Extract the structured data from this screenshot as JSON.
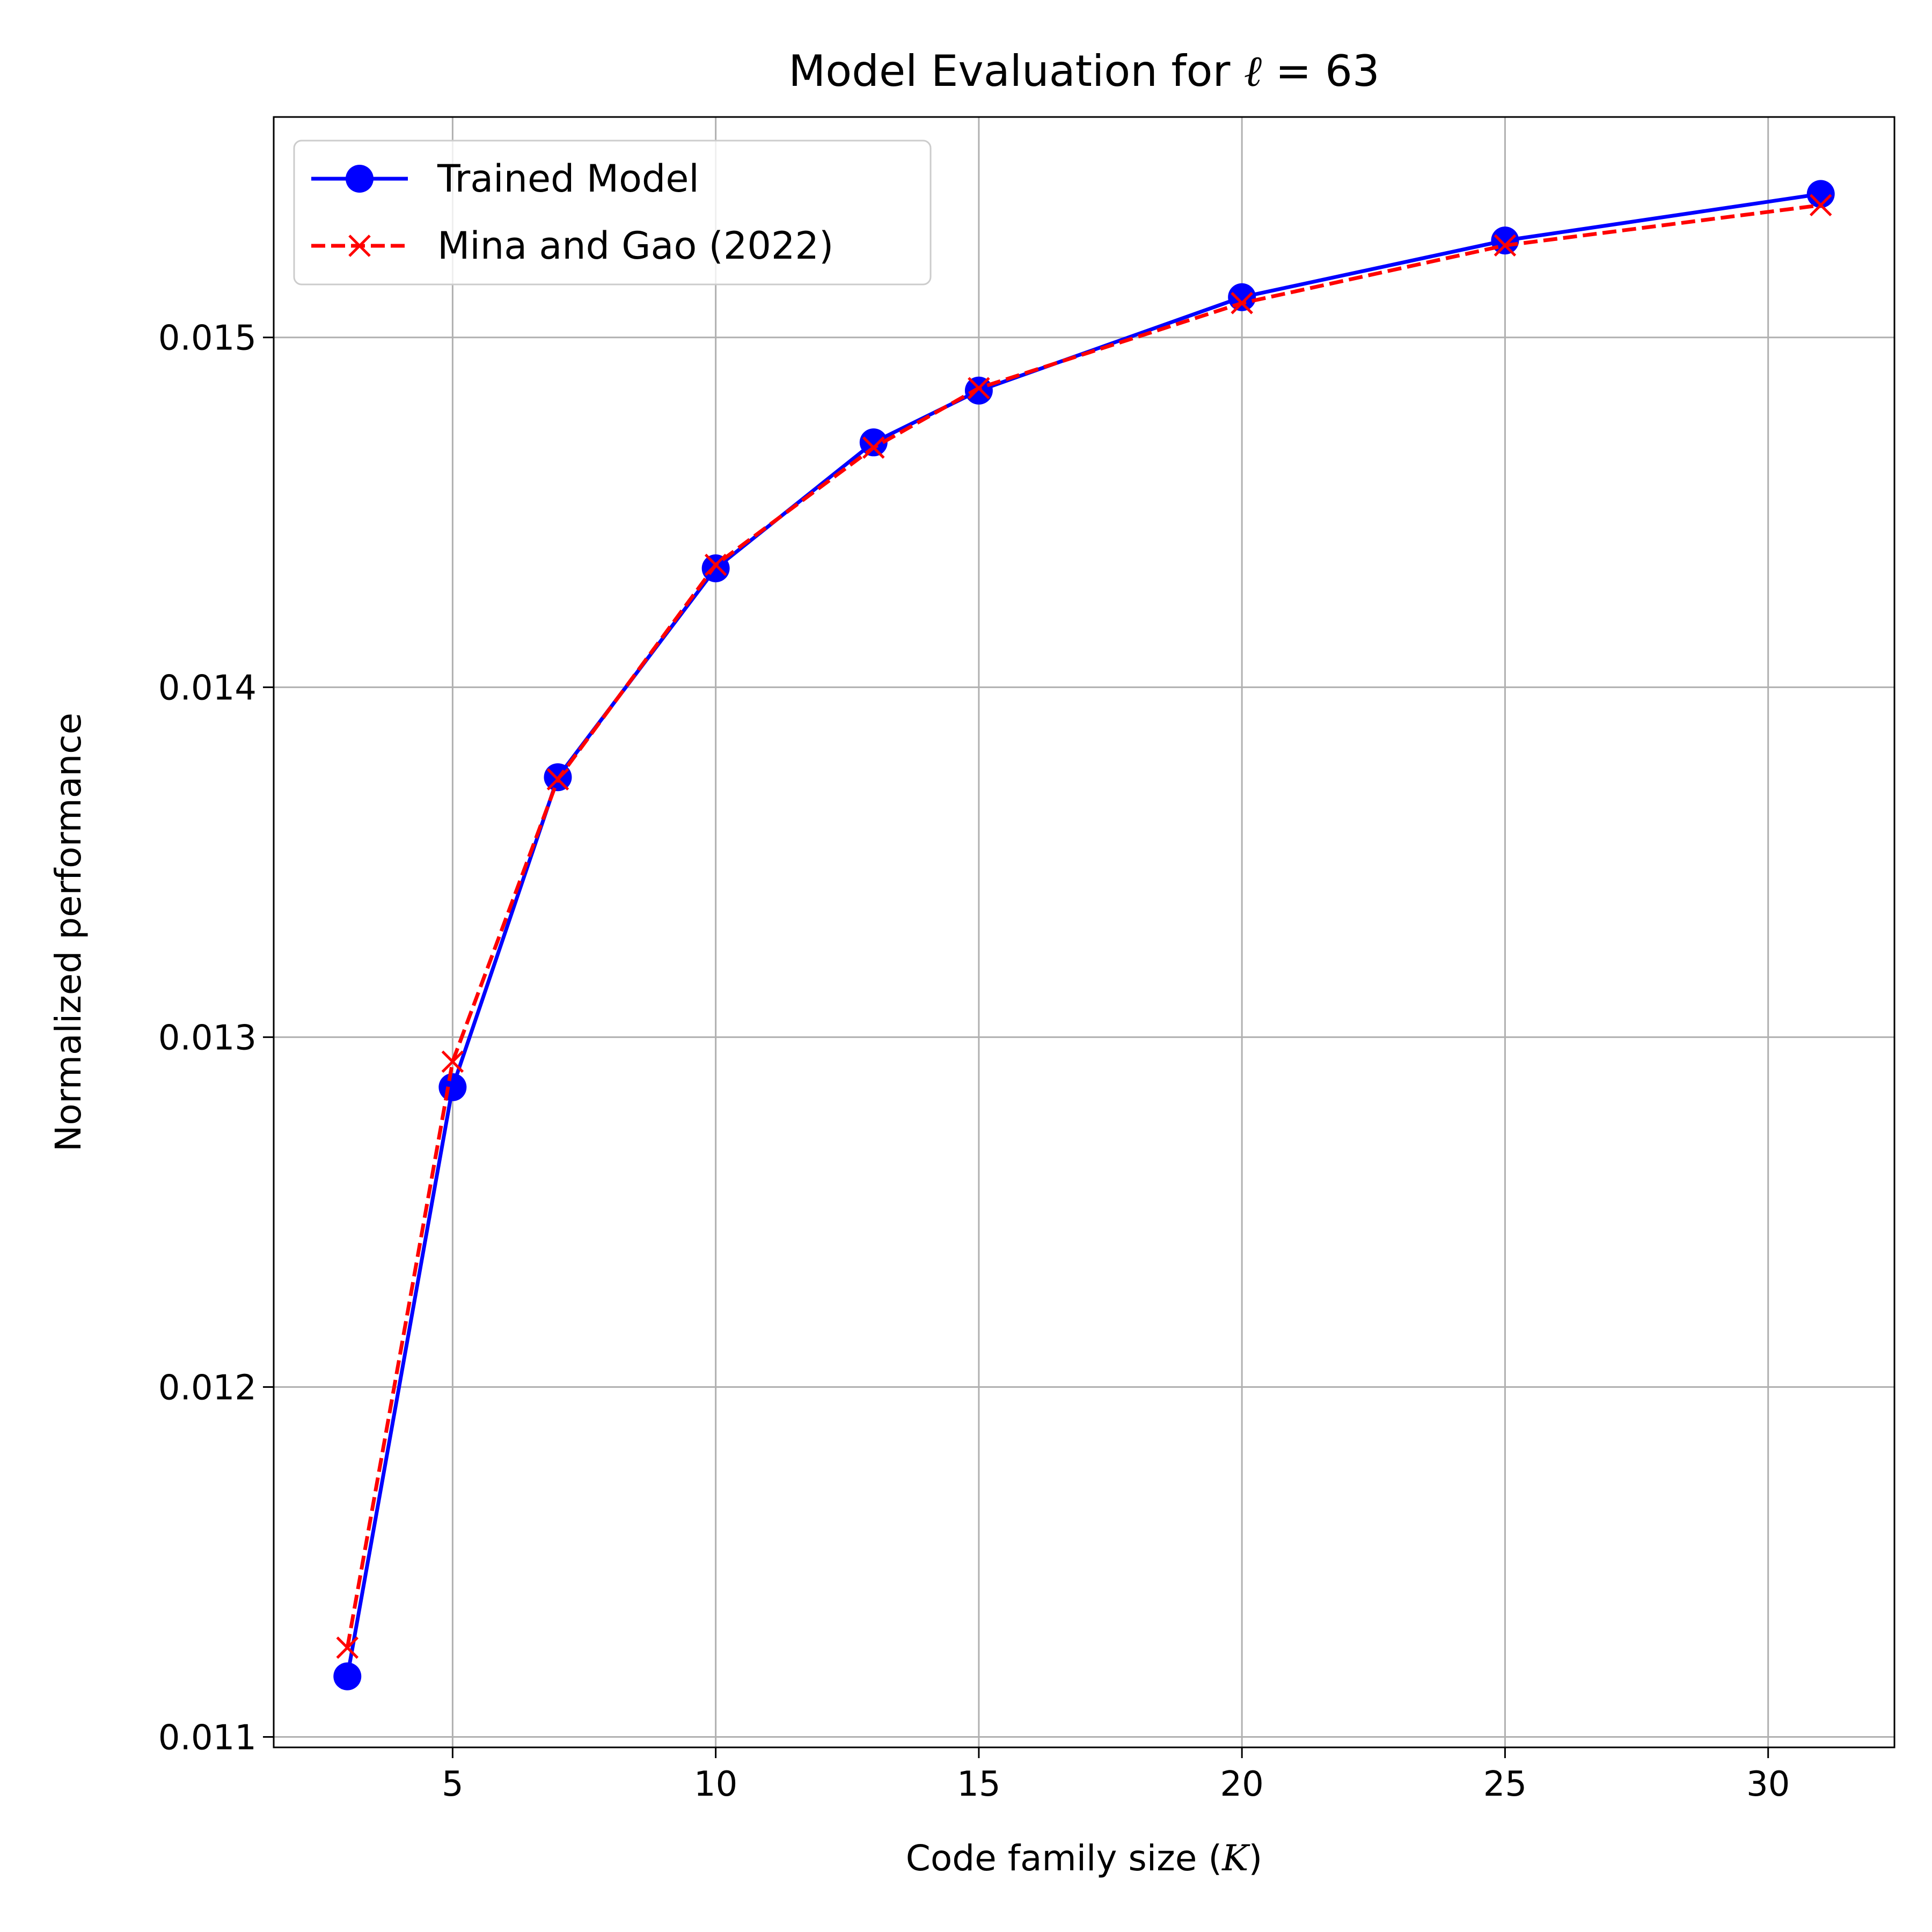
{
  "chart_data": {
    "type": "line",
    "title": {
      "prefix": "Model Evaluation for ",
      "symbol": "ℓ",
      "suffix": " = 63"
    },
    "xlabel": {
      "prefix": "Code family size (",
      "symbol": "K",
      "suffix": ")"
    },
    "ylabel": "Normalized performance",
    "xlim": [
      1.6,
      32.4
    ],
    "ylim": [
      0.01097,
      0.01563
    ],
    "x_ticks": [
      {
        "value": 5,
        "label": "5"
      },
      {
        "value": 10,
        "label": "10"
      },
      {
        "value": 15,
        "label": "15"
      },
      {
        "value": 20,
        "label": "20"
      },
      {
        "value": 25,
        "label": "25"
      },
      {
        "value": 30,
        "label": "30"
      }
    ],
    "y_ticks": [
      {
        "value": 0.011,
        "label": "0.011"
      },
      {
        "value": 0.012,
        "label": "0.012"
      },
      {
        "value": 0.013,
        "label": "0.013"
      },
      {
        "value": 0.014,
        "label": "0.014"
      },
      {
        "value": 0.015,
        "label": "0.015"
      }
    ],
    "grid": true,
    "legend_position": "top-left",
    "series": [
      {
        "name": "Trained Model",
        "color": "#0000ff",
        "line_style": "solid",
        "marker": "circle",
        "x": [
          3,
          5,
          7,
          10,
          13,
          15,
          20,
          25,
          31
        ],
        "y": [
          0.011173,
          0.012857,
          0.013743,
          0.01434,
          0.0147,
          0.014848,
          0.015115,
          0.015277,
          0.01541
        ]
      },
      {
        "name": "Mina and Gao (2022)",
        "color": "#ff0000",
        "line_style": "dashed",
        "marker": "x",
        "x": [
          3,
          5,
          7,
          10,
          13,
          15,
          20,
          25,
          31
        ],
        "y": [
          0.011255,
          0.01293,
          0.013737,
          0.01435,
          0.014685,
          0.014855,
          0.015098,
          0.015263,
          0.015378
        ]
      }
    ]
  }
}
